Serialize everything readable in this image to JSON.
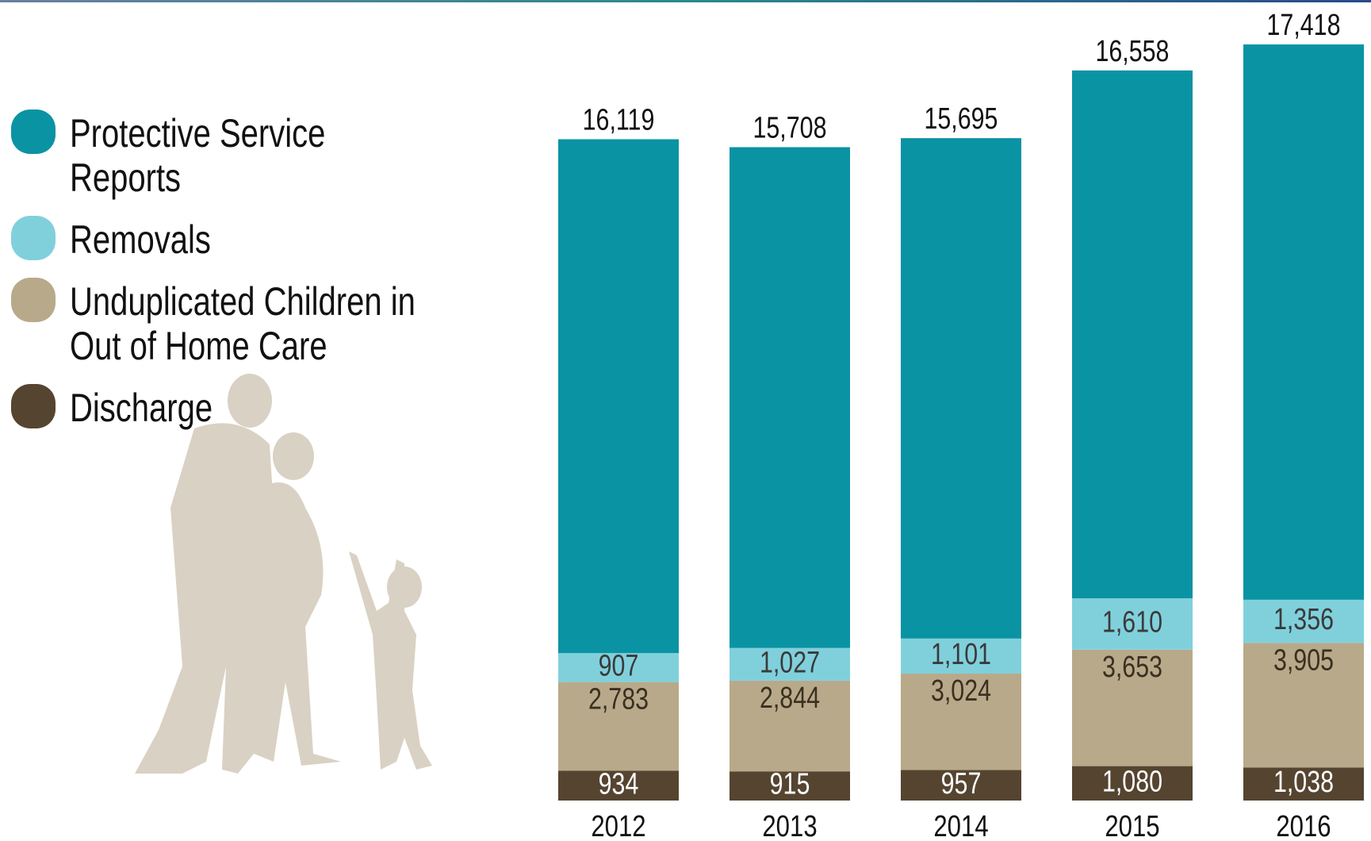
{
  "chart_data": {
    "type": "stacked_bar",
    "categories": [
      "2012",
      "2013",
      "2014",
      "2015",
      "2016"
    ],
    "series": [
      {
        "name": "Protective Service Reports",
        "color": "#0a93a3",
        "values": [
          16119,
          15708,
          15695,
          16558,
          17418
        ],
        "value_labels": [
          "16,119",
          "15,708",
          "15,695",
          "16,558",
          "17,418"
        ]
      },
      {
        "name": "Removals",
        "color": "#80d0dc",
        "values": [
          907,
          1027,
          1101,
          1610,
          1356
        ],
        "value_labels": [
          "907",
          "1,027",
          "1,101",
          "1,610",
          "1,356"
        ]
      },
      {
        "name": "Unduplicated Children in Out of Home Care",
        "color": "#b8a98a",
        "values": [
          2783,
          2844,
          3024,
          3653,
          3905
        ],
        "value_labels": [
          "2,783",
          "2,844",
          "3,024",
          "3,653",
          "3,905"
        ]
      },
      {
        "name": "Discharge",
        "color": "#554430",
        "values": [
          934,
          915,
          957,
          1080,
          1038
        ],
        "value_labels": [
          "934",
          "915",
          "957",
          "1,080",
          "1,038"
        ]
      }
    ]
  }
}
